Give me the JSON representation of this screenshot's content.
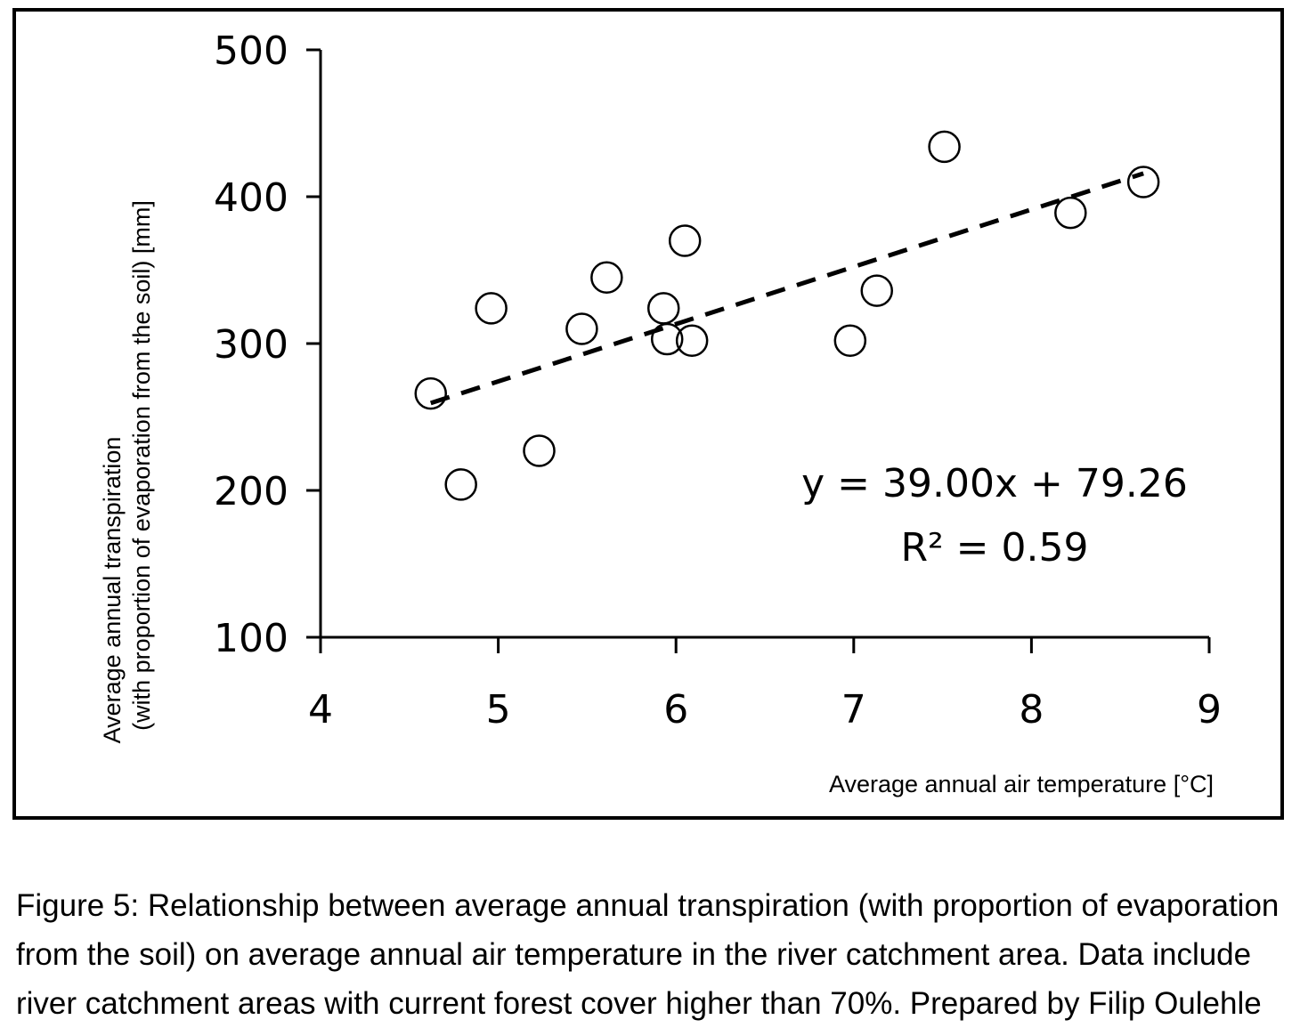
{
  "chart_data": {
    "type": "scatter",
    "xlabel": "Average annual air temperature   [°C]",
    "ylabel_line1": "Average annual transpiration",
    "ylabel_line2": "(with proportion of evaporation from the soil) [mm]",
    "xlim": [
      4,
      9
    ],
    "ylim": [
      100,
      500
    ],
    "x_ticks": [
      4,
      5,
      6,
      7,
      8,
      9
    ],
    "y_ticks": [
      100,
      200,
      300,
      400,
      500
    ],
    "grid": false,
    "marker": "open-circle",
    "points": [
      {
        "x": 4.62,
        "y": 266
      },
      {
        "x": 4.79,
        "y": 204
      },
      {
        "x": 4.96,
        "y": 324
      },
      {
        "x": 5.23,
        "y": 227
      },
      {
        "x": 5.47,
        "y": 310
      },
      {
        "x": 5.61,
        "y": 345
      },
      {
        "x": 5.93,
        "y": 324
      },
      {
        "x": 5.95,
        "y": 303
      },
      {
        "x": 6.05,
        "y": 370
      },
      {
        "x": 6.09,
        "y": 302
      },
      {
        "x": 6.98,
        "y": 302
      },
      {
        "x": 7.13,
        "y": 336
      },
      {
        "x": 7.51,
        "y": 434
      },
      {
        "x": 8.22,
        "y": 389
      },
      {
        "x": 8.63,
        "y": 410
      }
    ],
    "trendline": {
      "slope": 39.0,
      "intercept": 79.26,
      "x_range": [
        4.62,
        8.63
      ],
      "style": "dashed"
    },
    "equation_text": "y = 39.00x + 79.26",
    "r2_text": "R² = 0.59"
  },
  "caption": {
    "lines": [
      "Figure 5: Relationship between average annual transpiration (with proportion of evaporation",
      "from the soil) on average annual air temperature in the river catchment area. Data include",
      "river catchment areas with current forest cover higher than 70%. Prepared by Filip Oulehle"
    ]
  }
}
